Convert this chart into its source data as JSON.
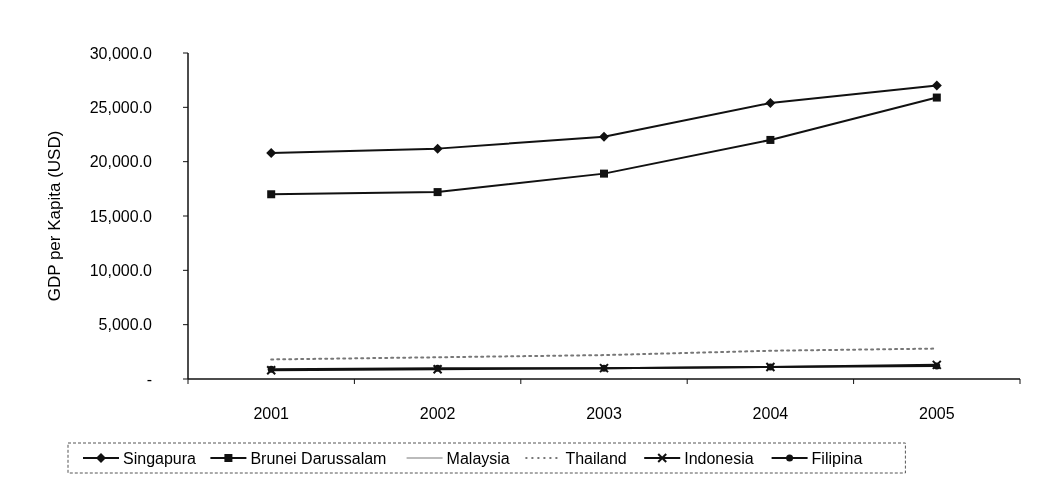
{
  "chart_data": {
    "type": "line",
    "ylabel": "GDP per Kapita (USD)",
    "categories": [
      "2001",
      "2002",
      "2003",
      "2004",
      "2005"
    ],
    "ylim": [
      0,
      30000
    ],
    "yticks": [
      {
        "value": 0,
        "label": "-"
      },
      {
        "value": 5000,
        "label": "5,000.0"
      },
      {
        "value": 10000,
        "label": "10,000.0"
      },
      {
        "value": 15000,
        "label": "15,000.0"
      },
      {
        "value": 20000,
        "label": "20,000.0"
      },
      {
        "value": 25000,
        "label": "25,000.0"
      },
      {
        "value": 30000,
        "label": "30,000.0"
      }
    ],
    "grid": false,
    "legend": "bottom",
    "series": [
      {
        "name": "Singapura",
        "color": "#111111",
        "marker": "diamond",
        "values": [
          20800,
          21200,
          22300,
          25400,
          27000
        ]
      },
      {
        "name": "Brunei Darussalam",
        "color": "#111111",
        "marker": "square",
        "values": [
          17000,
          17200,
          18900,
          22000,
          25900
        ]
      },
      {
        "name": "Malaysia",
        "color": "#bbbbbb",
        "marker": "none",
        "values": [
          null,
          null,
          null,
          null,
          null
        ]
      },
      {
        "name": "Thailand",
        "color": "#777777",
        "marker": "none",
        "line_style": "dotted",
        "values": [
          1800,
          2000,
          2200,
          2600,
          2800
        ]
      },
      {
        "name": "Indonesia",
        "color": "#111111",
        "marker": "cross",
        "values": [
          800,
          900,
          1000,
          1100,
          1300
        ]
      },
      {
        "name": "Filipina",
        "color": "#111111",
        "marker": "circle",
        "values": [
          900,
          1000,
          1000,
          1100,
          1200
        ]
      }
    ]
  }
}
